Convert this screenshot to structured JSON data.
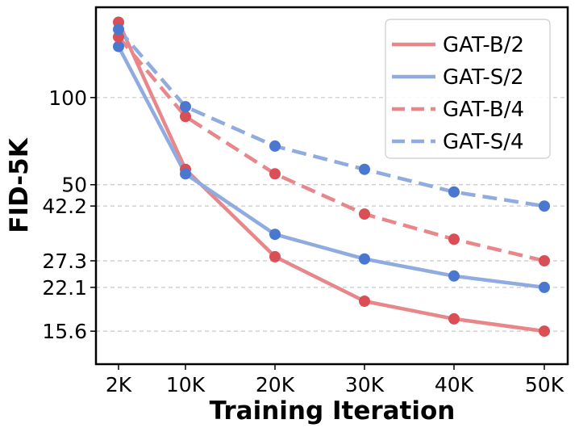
{
  "chart_data": {
    "type": "line",
    "xlabel": "Training Iteration",
    "ylabel": "FID-5K",
    "x": [
      "2K",
      "10K",
      "20K",
      "30K",
      "40K",
      "50K"
    ],
    "y_scale": "log",
    "ylim": [
      12,
      205
    ],
    "y_ticks": [
      15.6,
      22.1,
      27.3,
      42.2,
      50,
      100
    ],
    "y_tick_labels": [
      "15.6",
      "22.1",
      "27.3",
      "42.2",
      "50",
      "100"
    ],
    "grid": "horizontal dashed",
    "legend_position": "top-right",
    "series": [
      {
        "name": "GAT-B/2",
        "values": [
          182,
          56.5,
          28.2,
          19.8,
          17.2,
          15.6
        ],
        "color": "#e8878a",
        "marker_color": "#d94f55",
        "dash": "solid"
      },
      {
        "name": "GAT-S/2",
        "values": [
          150,
          54.5,
          33.7,
          27.7,
          24.2,
          22.1
        ],
        "color": "#8fabe0",
        "marker_color": "#4a78d0",
        "dash": "solid"
      },
      {
        "name": "GAT-B/4",
        "values": [
          162,
          86,
          54.5,
          39.6,
          32.4,
          27.3
        ],
        "color": "#e8878a",
        "marker_color": "#d94f55",
        "dash": "dashed"
      },
      {
        "name": "GAT-S/4",
        "values": [
          172,
          93,
          68,
          56.5,
          47.2,
          42.2
        ],
        "color": "#8fabe0",
        "marker_color": "#4a78d0",
        "dash": "dashed"
      }
    ]
  }
}
